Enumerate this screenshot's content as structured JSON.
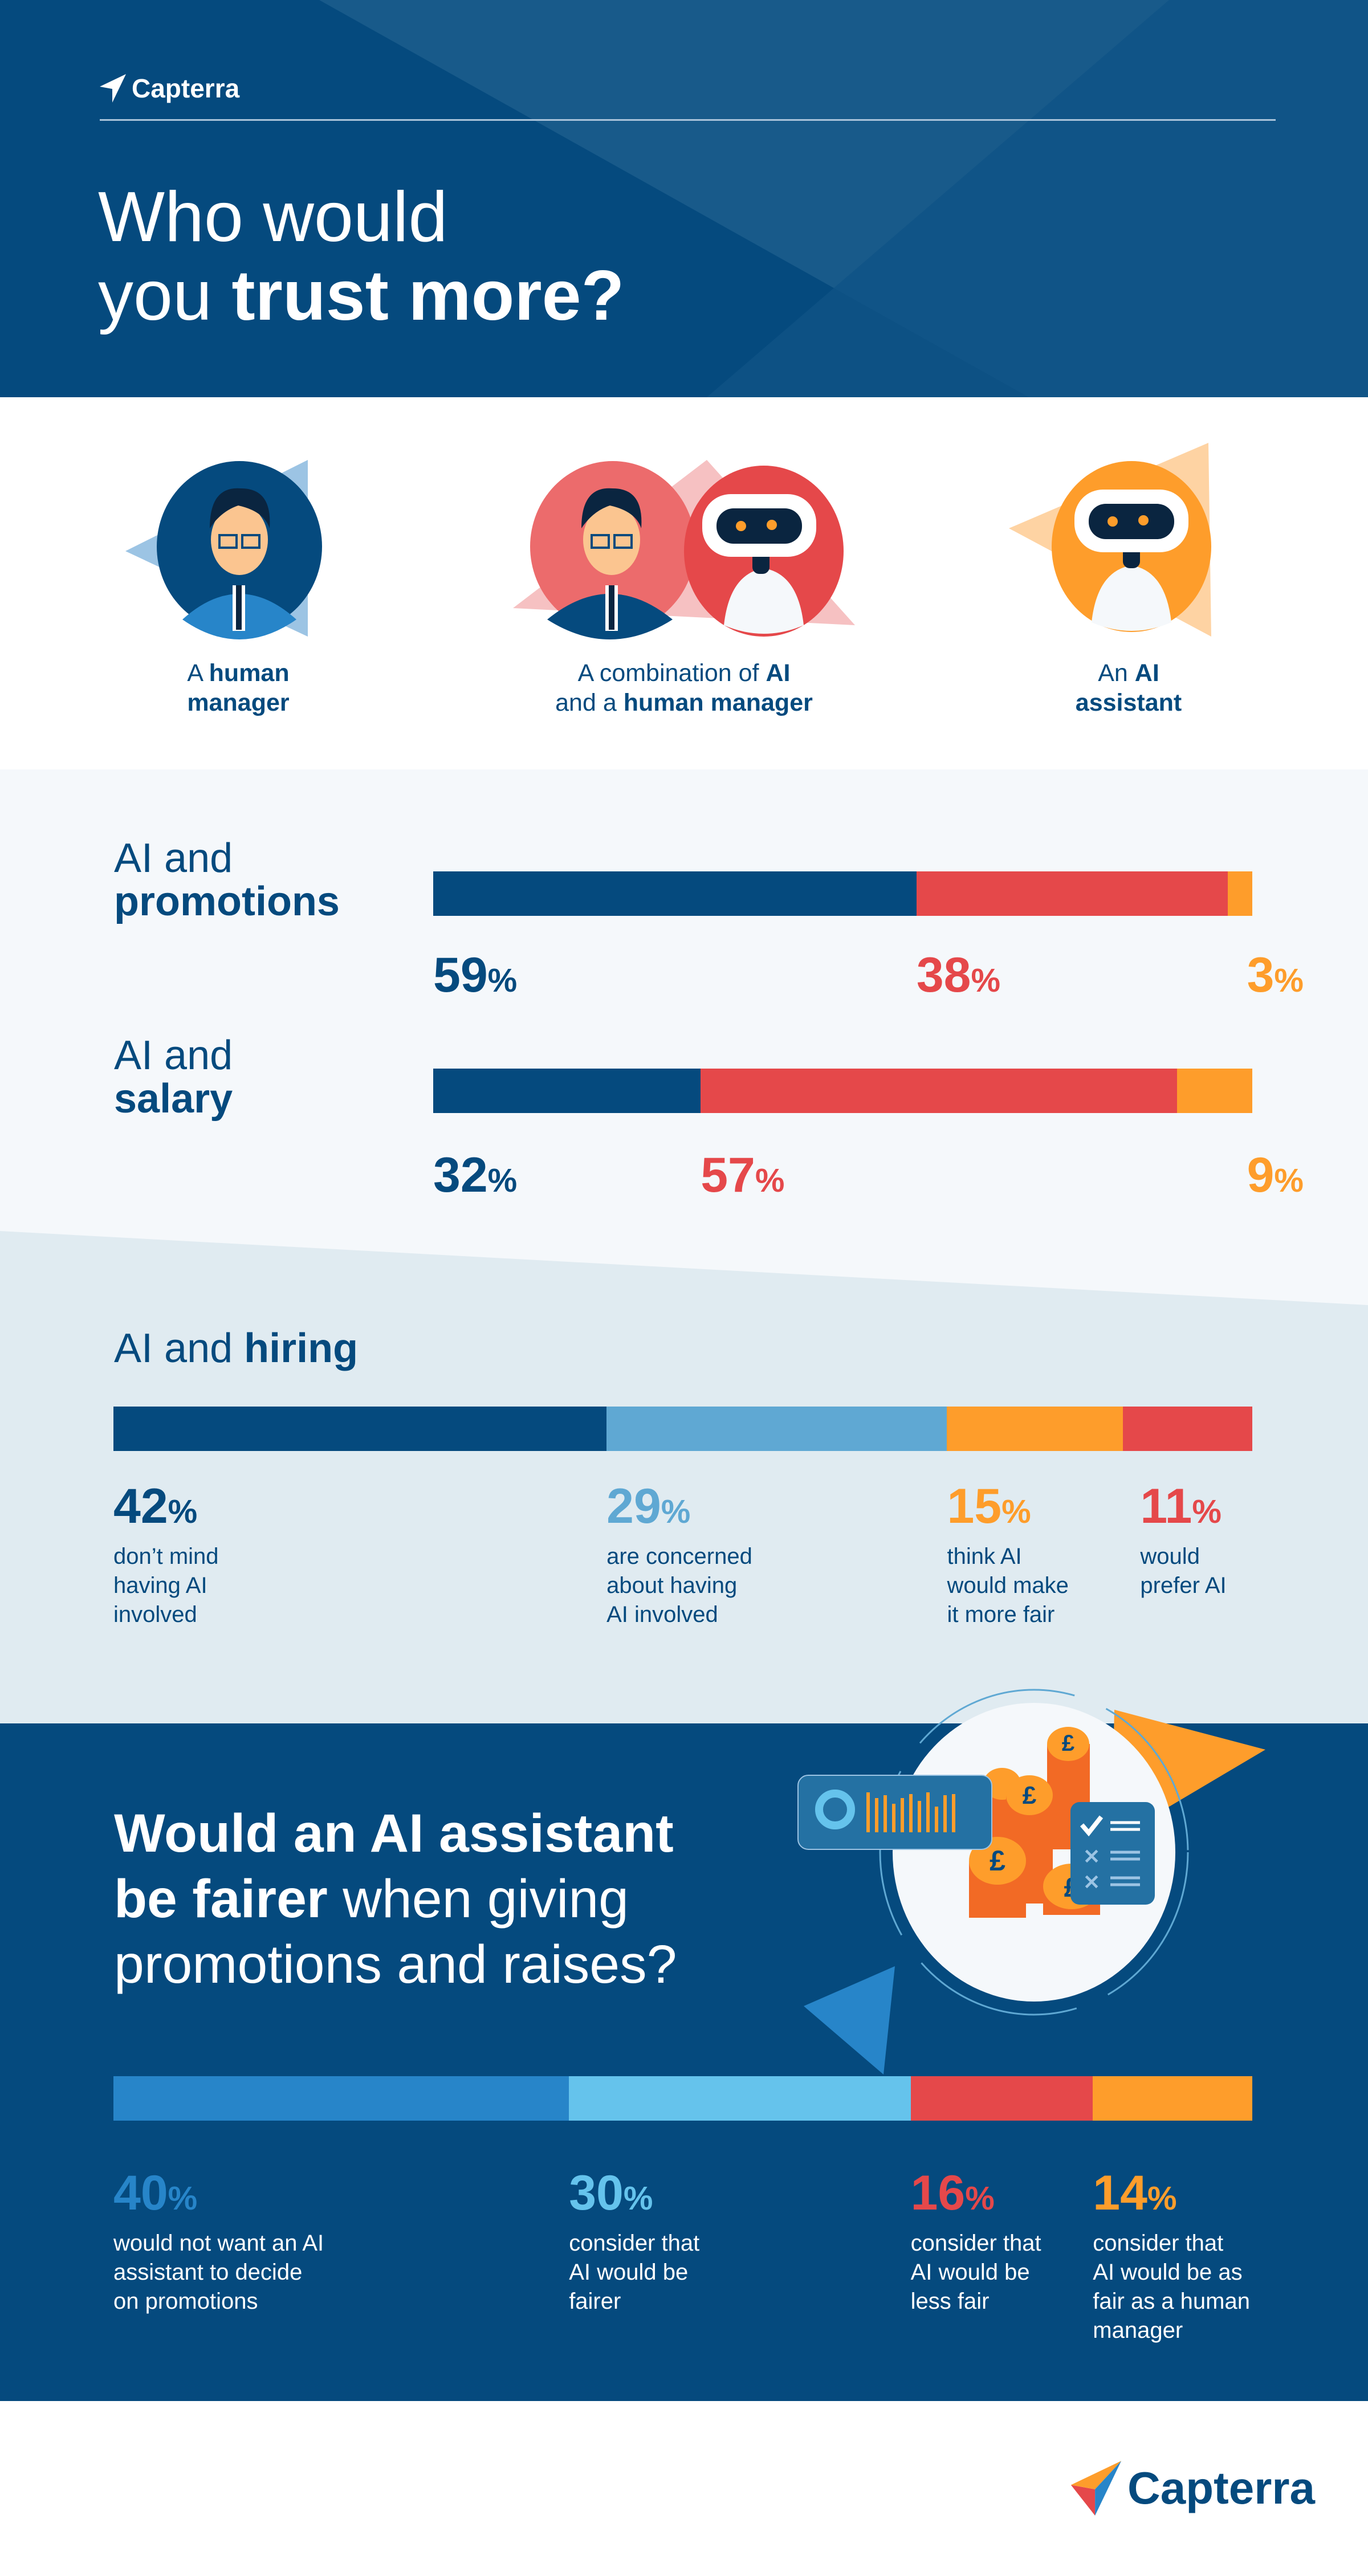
{
  "header": {
    "brand": "Capterra",
    "title_line1": "Who would",
    "title_line2_light": "you ",
    "title_line2_bold": "trust more?"
  },
  "options": [
    {
      "light1": "A ",
      "bold1": "human",
      "line2_light": "",
      "line2_bold": "manager"
    },
    {
      "light1": "A combination of ",
      "bold1": "AI",
      "line2_light": "and a ",
      "line2_bold": "human manager"
    },
    {
      "light1": "An ",
      "bold1": "AI",
      "line2_light": "",
      "line2_bold": "assistant"
    }
  ],
  "colors": {
    "human": "#054a7e",
    "combination": "#e5484a",
    "ai": "#fe9d2b",
    "light_blue": "#5fa8d3",
    "mid_blue": "#2785c9",
    "sky": "#65c3ec"
  },
  "promotions": {
    "label_light": "AI and",
    "label_bold": "promotions",
    "values": [
      59,
      38,
      3
    ]
  },
  "salary": {
    "label_light": "AI and",
    "label_bold": "salary",
    "values": [
      32,
      57,
      9
    ]
  },
  "hiring": {
    "label_light": "AI and ",
    "label_bold": "hiring",
    "items": [
      {
        "value": 42,
        "lines": [
          "don’t mind",
          "having AI",
          "involved"
        ]
      },
      {
        "value": 29,
        "lines": [
          "are concerned",
          "about having",
          "AI involved"
        ]
      },
      {
        "value": 15,
        "lines": [
          "think AI",
          "would make",
          "it more fair"
        ]
      },
      {
        "value": 11,
        "lines": [
          "would",
          "prefer AI"
        ]
      }
    ]
  },
  "fairer": {
    "title_line1": "Would an AI assistant",
    "title_line2_bold": "be fairer",
    "title_line2_light": " when giving",
    "title_line3": "promotions and raises?",
    "items": [
      {
        "value": 40,
        "lines": [
          "would not want an AI",
          "assistant to decide",
          "on promotions"
        ]
      },
      {
        "value": 30,
        "lines": [
          "consider that",
          "AI would be",
          "fairer"
        ]
      },
      {
        "value": 16,
        "lines": [
          "consider that",
          "AI would be",
          "less fair"
        ]
      },
      {
        "value": 14,
        "lines": [
          "consider that",
          "AI would be as",
          "fair as a human",
          "manager"
        ]
      }
    ]
  },
  "footer": {
    "brand": "Capterra"
  },
  "percent_sign": "%"
}
